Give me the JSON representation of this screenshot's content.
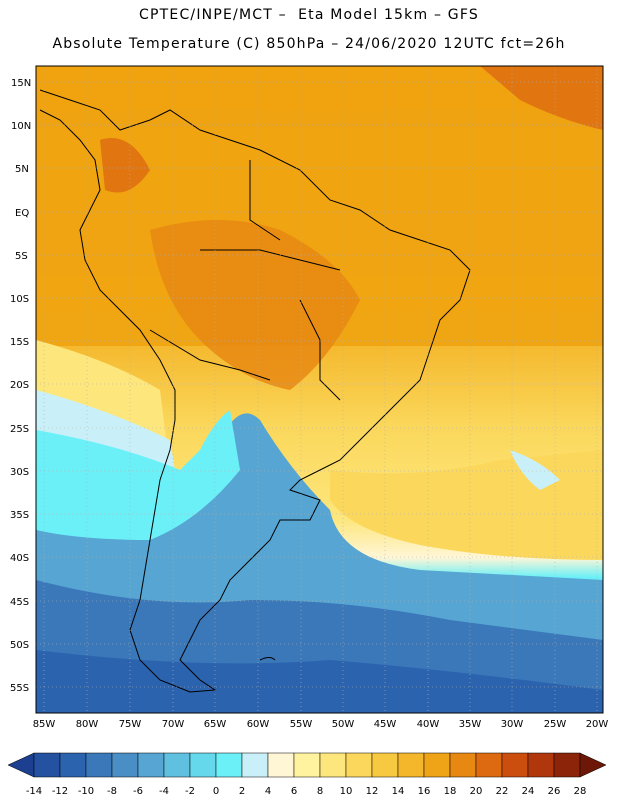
{
  "header": {
    "line1": "CPTEC/INPE/MCT –  Eta Model 15km – GFS",
    "line2": "Absolute Temperature (C) 850hPa – 24/06/2020 12UTC fct=26h"
  },
  "map": {
    "lat_labels": [
      "15N",
      "10N",
      "5N",
      "EQ",
      "5S",
      "10S",
      "15S",
      "20S",
      "25S",
      "30S",
      "35S",
      "40S",
      "45S",
      "50S",
      "55S"
    ],
    "lon_labels": [
      "85W",
      "80W",
      "75W",
      "70W",
      "65W",
      "60W",
      "55W",
      "50W",
      "45W",
      "40W",
      "35W",
      "30W",
      "25W",
      "20W"
    ],
    "colors": {
      "cold": "#2b6fb0",
      "cyan": "#5ad8ea",
      "warm": "#f0a30f",
      "hot": "#e8851a",
      "yellow": "#fbe37a",
      "coast": "#000000"
    }
  },
  "colorbar": {
    "labels": [
      "-14",
      "-12",
      "-10",
      "-8",
      "-6",
      "-4",
      "-2",
      "0",
      "2",
      "4",
      "6",
      "8",
      "10",
      "12",
      "14",
      "16",
      "18",
      "20",
      "22",
      "24",
      "26",
      "28"
    ],
    "colors": [
      "#1c3f8f",
      "#2452a0",
      "#2c63ae",
      "#3a78ba",
      "#4a8ec6",
      "#56a5d2",
      "#5fc0e0",
      "#66d8ec",
      "#6cf0f8",
      "#c9f0f8",
      "#fff6d6",
      "#fff3a0",
      "#fde67c",
      "#fbd85c",
      "#f7c940",
      "#f4b62a",
      "#efa317",
      "#e78813",
      "#dd6a11",
      "#cc4e0e",
      "#b0370c",
      "#8c2409",
      "#6c1707"
    ]
  }
}
